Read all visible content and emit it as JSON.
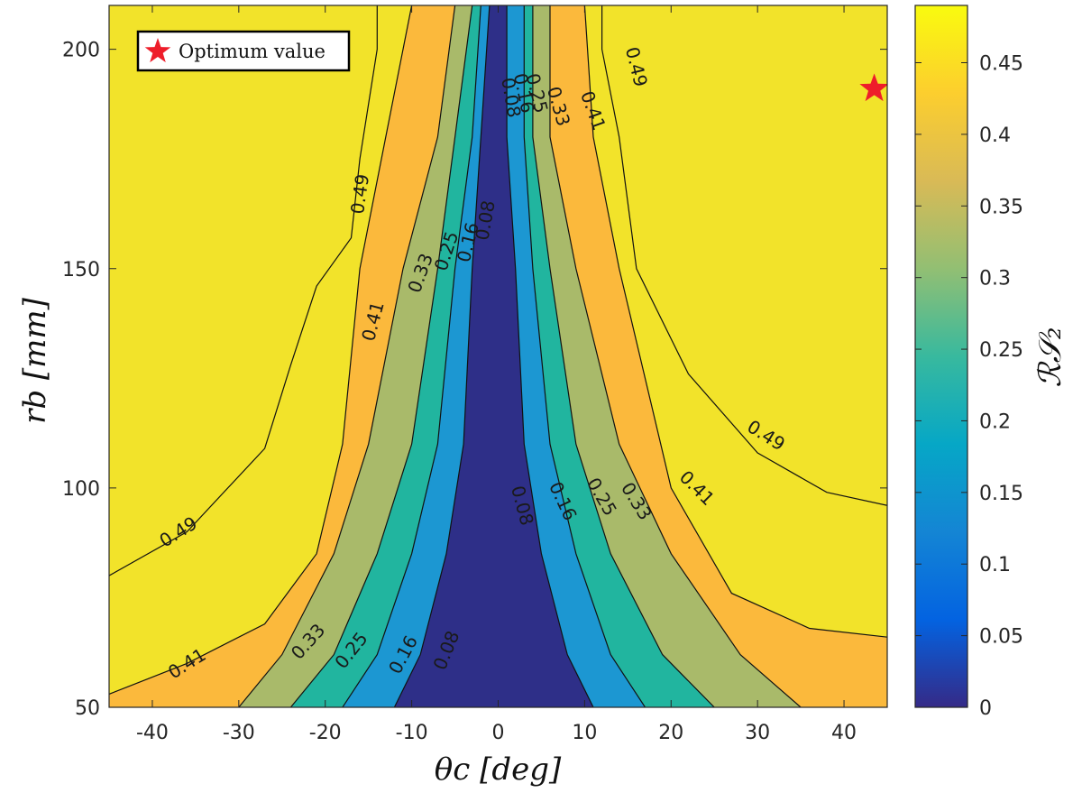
{
  "chart_data": {
    "type": "contour",
    "xlabel": "θc [deg]",
    "ylabel": "rb [mm]",
    "xlim": [
      -45,
      45
    ],
    "ylim": [
      50,
      210
    ],
    "x_ticks": [
      "-40",
      "-30",
      "-20",
      "-10",
      "0",
      "10",
      "20",
      "30",
      "40"
    ],
    "y_ticks": [
      "50",
      "100",
      "150",
      "200"
    ],
    "contour_levels": [
      0.08,
      0.16,
      0.25,
      0.33,
      0.41,
      0.49
    ],
    "contour_labels": [
      "0.08",
      "0.16",
      "0.25",
      "0.33",
      "0.41",
      "0.49"
    ],
    "colorbar": {
      "label": "ℛ𝒮₂",
      "range": [
        0,
        0.49
      ],
      "ticks": [
        "0",
        "0.05",
        "0.1",
        "0.15",
        "0.2",
        "0.25",
        "0.3",
        "0.35",
        "0.4",
        "0.45"
      ]
    },
    "region_colors": [
      "#2e2f88",
      "#2b64b8",
      "#1c97d2",
      "#21b59f",
      "#a9ba6a",
      "#fbb93c",
      "#f2e32a"
    ],
    "contours": [
      {
        "level": 0.08,
        "left": [
          [
            -12,
            50
          ],
          [
            -9,
            62
          ],
          [
            -6,
            85
          ],
          [
            -4,
            110
          ],
          [
            -3,
            150
          ],
          [
            -2,
            180
          ],
          [
            -1,
            210
          ]
        ],
        "right": [
          [
            11,
            50
          ],
          [
            8,
            62
          ],
          [
            5,
            85
          ],
          [
            3,
            110
          ],
          [
            2,
            150
          ],
          [
            1,
            180
          ],
          [
            1,
            210
          ]
        ]
      },
      {
        "level": 0.16,
        "left": [
          [
            -18,
            50
          ],
          [
            -14,
            62
          ],
          [
            -10,
            85
          ],
          [
            -7,
            110
          ],
          [
            -5,
            150
          ],
          [
            -3,
            180
          ],
          [
            -2,
            210
          ]
        ],
        "right": [
          [
            17,
            50
          ],
          [
            13,
            62
          ],
          [
            9,
            85
          ],
          [
            6,
            110
          ],
          [
            4,
            150
          ],
          [
            3,
            180
          ],
          [
            3,
            210
          ]
        ]
      },
      {
        "level": 0.25,
        "left": [
          [
            -24,
            50
          ],
          [
            -19,
            62
          ],
          [
            -14,
            85
          ],
          [
            -10,
            110
          ],
          [
            -7,
            150
          ],
          [
            -5,
            180
          ],
          [
            -3,
            210
          ]
        ],
        "right": [
          [
            25,
            50
          ],
          [
            19,
            62
          ],
          [
            13,
            85
          ],
          [
            9,
            110
          ],
          [
            6,
            150
          ],
          [
            4,
            180
          ],
          [
            4,
            210
          ]
        ]
      },
      {
        "level": 0.33,
        "left": [
          [
            -30,
            50
          ],
          [
            -25,
            62
          ],
          [
            -19,
            85
          ],
          [
            -15,
            110
          ],
          [
            -11,
            150
          ],
          [
            -7,
            180
          ],
          [
            -5,
            210
          ]
        ],
        "right": [
          [
            35,
            50
          ],
          [
            28,
            62
          ],
          [
            20,
            85
          ],
          [
            14,
            110
          ],
          [
            9,
            150
          ],
          [
            6,
            180
          ],
          [
            6,
            210
          ]
        ]
      },
      {
        "level": 0.41,
        "left": [
          [
            -45,
            53
          ],
          [
            -36,
            60
          ],
          [
            -27,
            69
          ],
          [
            -21,
            85
          ],
          [
            -18,
            110
          ],
          [
            -16,
            150
          ],
          [
            -13,
            180
          ],
          [
            -10,
            210
          ]
        ],
        "right": [
          [
            45,
            66
          ],
          [
            36,
            68
          ],
          [
            27,
            76
          ],
          [
            20,
            100
          ],
          [
            14,
            150
          ],
          [
            11,
            180
          ],
          [
            10,
            210
          ]
        ]
      },
      {
        "level": 0.49,
        "left": [
          [
            -45,
            80
          ],
          [
            -36,
            90
          ],
          [
            -27,
            109
          ],
          [
            -24,
            128
          ],
          [
            -21,
            146
          ],
          [
            -17,
            157
          ],
          [
            -16,
            175
          ],
          [
            -14,
            200
          ],
          [
            -14,
            210
          ]
        ],
        "right": [
          [
            45,
            96
          ],
          [
            38,
            99
          ],
          [
            30,
            108
          ],
          [
            22,
            126
          ],
          [
            16,
            150
          ],
          [
            14,
            180
          ],
          [
            12,
            200
          ],
          [
            12,
            210
          ]
        ]
      }
    ],
    "contour_label_positions": [
      {
        "text": "0.49",
        "x": -37,
        "y": 90,
        "angle": -32
      },
      {
        "text": "0.41",
        "x": -36,
        "y": 60,
        "angle": -32
      },
      {
        "text": "0.33",
        "x": -22,
        "y": 65,
        "angle": -48
      },
      {
        "text": "0.25",
        "x": -17,
        "y": 63,
        "angle": -52
      },
      {
        "text": "0.16",
        "x": -11,
        "y": 62,
        "angle": -62
      },
      {
        "text": "0.08",
        "x": -6,
        "y": 63,
        "angle": -68
      },
      {
        "text": "0.49",
        "x": -16,
        "y": 167,
        "angle": -82
      },
      {
        "text": "0.41",
        "x": -14.5,
        "y": 138,
        "angle": -75
      },
      {
        "text": "0.33",
        "x": -9,
        "y": 149,
        "angle": -70
      },
      {
        "text": "0.25",
        "x": -6,
        "y": 154,
        "angle": -72
      },
      {
        "text": "0.16",
        "x": -3.5,
        "y": 156,
        "angle": -76
      },
      {
        "text": "0.08",
        "x": -1.5,
        "y": 161,
        "angle": -80
      },
      {
        "text": "0.08",
        "x": 2.8,
        "y": 96,
        "angle": 75
      },
      {
        "text": "0.16",
        "x": 7.5,
        "y": 97,
        "angle": 65
      },
      {
        "text": "0.25",
        "x": 12,
        "y": 98,
        "angle": 60
      },
      {
        "text": "0.33",
        "x": 16,
        "y": 97,
        "angle": 58
      },
      {
        "text": "0.41",
        "x": 23,
        "y": 100,
        "angle": 45
      },
      {
        "text": "0.49",
        "x": 31,
        "y": 112,
        "angle": 32
      },
      {
        "text": "0.08",
        "x": 1.5,
        "y": 189,
        "angle": 80
      },
      {
        "text": "0.16",
        "x": 3,
        "y": 190,
        "angle": 78
      },
      {
        "text": "0.25",
        "x": 4.5,
        "y": 190,
        "angle": 76
      },
      {
        "text": "0.33",
        "x": 7,
        "y": 187,
        "angle": 74
      },
      {
        "text": "0.41",
        "x": 11,
        "y": 186,
        "angle": 70
      },
      {
        "text": "0.49",
        "x": 16,
        "y": 196,
        "angle": 76
      }
    ],
    "optimum_point": {
      "x": 43.5,
      "y": 191
    },
    "legend": {
      "entries": [
        "Optimum value"
      ],
      "position": "top-left"
    },
    "grid": false
  }
}
